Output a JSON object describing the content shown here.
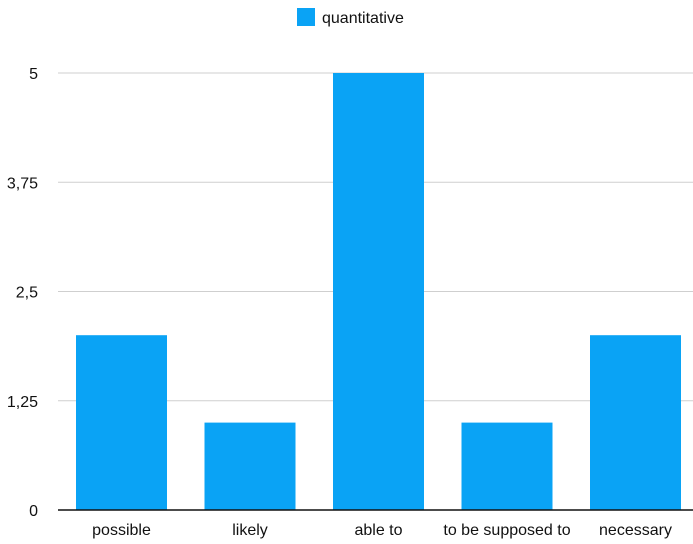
{
  "chart_data": {
    "type": "bar",
    "title": "",
    "xlabel": "",
    "ylabel": "",
    "categories": [
      "possible",
      "likely",
      "able to",
      "to be supposed to",
      "necessary"
    ],
    "series": [
      {
        "name": "quantitative",
        "values": [
          2,
          1,
          5,
          1,
          2
        ],
        "color": "#0aa3f5"
      }
    ],
    "ylim": [
      0,
      5
    ],
    "yticks": [
      0,
      1.25,
      2.5,
      3.75,
      5
    ],
    "ytick_labels": [
      "0",
      "1,25",
      "2,5",
      "3,75",
      "5"
    ],
    "grid": true,
    "legend_position": "top-center"
  }
}
